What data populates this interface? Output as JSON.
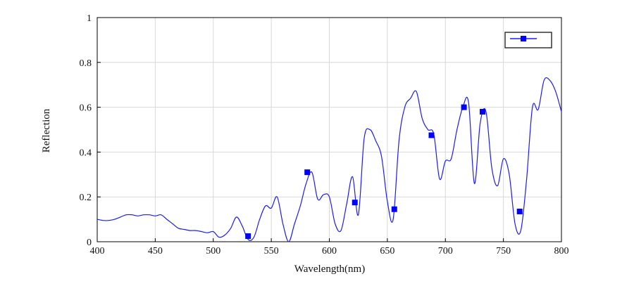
{
  "chart_data": {
    "type": "line",
    "title": "",
    "xlabel": "Wavelength(nm)",
    "ylabel": "Reflection",
    "xlim": [
      400,
      800
    ],
    "ylim": [
      0,
      1
    ],
    "x_ticks": [
      400,
      450,
      500,
      550,
      600,
      650,
      700,
      750,
      800
    ],
    "y_ticks": [
      0,
      0.2,
      0.4,
      0.6,
      0.8,
      1
    ],
    "y_tick_labels": [
      "0",
      "0.2",
      "0.4",
      "0.6",
      "0.8",
      "1"
    ],
    "grid": true,
    "legend": {
      "placement": "top-right",
      "entries": [
        ""
      ]
    },
    "series": [
      {
        "line_color": "#1a1aff",
        "marker": "square",
        "marker_color": "#0000ff",
        "x": [
          400,
          405,
          410,
          415,
          420,
          425,
          430,
          435,
          440,
          445,
          450,
          455,
          460,
          465,
          470,
          475,
          480,
          485,
          490,
          495,
          500,
          505,
          510,
          515,
          520,
          525,
          530,
          535,
          540,
          545,
          550,
          555,
          560,
          565,
          570,
          575,
          580,
          585,
          590,
          595,
          600,
          605,
          610,
          615,
          620,
          625,
          630,
          635,
          640,
          645,
          650,
          655,
          660,
          665,
          670,
          675,
          680,
          685,
          690,
          695,
          700,
          705,
          710,
          715,
          720,
          725,
          730,
          735,
          740,
          745,
          750,
          755,
          760,
          765,
          770,
          775,
          780,
          785,
          790,
          795,
          800
        ],
        "y": [
          0.1,
          0.095,
          0.095,
          0.1,
          0.11,
          0.12,
          0.12,
          0.115,
          0.12,
          0.12,
          0.115,
          0.12,
          0.1,
          0.08,
          0.06,
          0.055,
          0.05,
          0.05,
          0.045,
          0.04,
          0.045,
          0.02,
          0.03,
          0.06,
          0.11,
          0.07,
          0.01,
          0.02,
          0.1,
          0.16,
          0.15,
          0.2,
          0.08,
          0.0,
          0.08,
          0.16,
          0.26,
          0.31,
          0.19,
          0.21,
          0.2,
          0.08,
          0.05,
          0.17,
          0.29,
          0.12,
          0.46,
          0.5,
          0.45,
          0.38,
          0.18,
          0.1,
          0.45,
          0.6,
          0.64,
          0.67,
          0.55,
          0.5,
          0.48,
          0.28,
          0.36,
          0.37,
          0.5,
          0.6,
          0.62,
          0.26,
          0.53,
          0.58,
          0.33,
          0.25,
          0.37,
          0.3,
          0.08,
          0.05,
          0.28,
          0.6,
          0.59,
          0.72,
          0.72,
          0.67,
          0.58
        ]
      }
    ],
    "markers": [
      {
        "x": 530,
        "y": 0.025
      },
      {
        "x": 581,
        "y": 0.31
      },
      {
        "x": 622,
        "y": 0.175
      },
      {
        "x": 656,
        "y": 0.145
      },
      {
        "x": 688,
        "y": 0.475
      },
      {
        "x": 716,
        "y": 0.6
      },
      {
        "x": 732,
        "y": 0.58
      },
      {
        "x": 764,
        "y": 0.135
      }
    ]
  }
}
